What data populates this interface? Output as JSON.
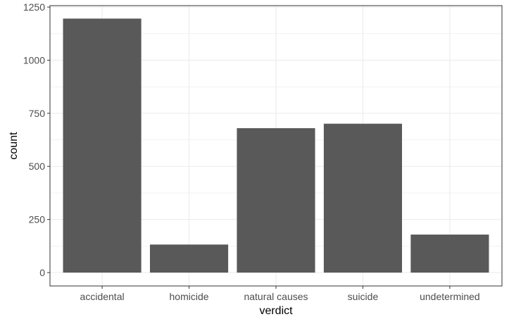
{
  "chart_data": {
    "type": "bar",
    "title": "",
    "xlabel": "verdict",
    "ylabel": "count",
    "categories": [
      "accidental",
      "homicide",
      "natural causes",
      "suicide",
      "undetermined"
    ],
    "values": [
      1196,
      132,
      680,
      701,
      179
    ],
    "ylim": [
      -63,
      1257
    ],
    "yticks": [
      0,
      250,
      500,
      750,
      1000,
      1250
    ],
    "grid": true,
    "legend": "none",
    "colors": {
      "bar": "#595959",
      "panel_border": "#333333",
      "grid": "#ebebeb",
      "background": "#ffffff"
    }
  }
}
